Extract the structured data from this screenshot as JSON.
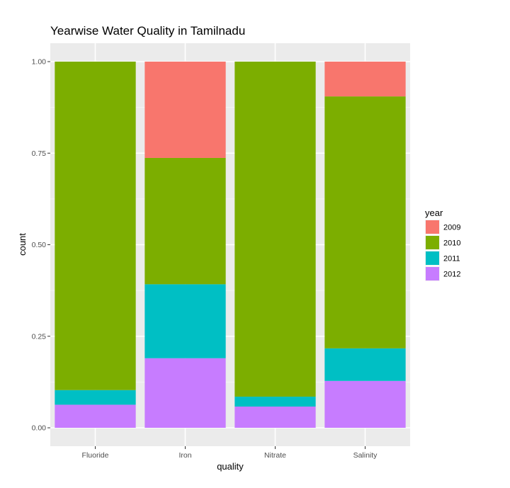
{
  "chart_data": {
    "type": "bar",
    "stacked": true,
    "title": "Yearwise Water Quality in Tamilnadu",
    "xlabel": "quality",
    "ylabel": "count",
    "categories": [
      "Fluoride",
      "Iron",
      "Nitrate",
      "Salinity"
    ],
    "ylim": [
      0,
      1
    ],
    "yticks": [
      "0.00",
      "0.25",
      "0.50",
      "0.75",
      "1.00"
    ],
    "grid": true,
    "legend_title": "year",
    "legend_position": "right",
    "series": [
      {
        "name": "2012",
        "color": "#C77CFF",
        "values": [
          0.063,
          0.19,
          0.058,
          0.128
        ]
      },
      {
        "name": "2011",
        "color": "#00BFC4",
        "values": [
          0.04,
          0.202,
          0.027,
          0.089
        ]
      },
      {
        "name": "2010",
        "color": "#7CAE00",
        "values": [
          0.897,
          0.345,
          0.915,
          0.688
        ]
      },
      {
        "name": "2009",
        "color": "#F8766D",
        "values": [
          0.0,
          0.263,
          0.0,
          0.095
        ]
      }
    ],
    "legend_order": [
      "2009",
      "2010",
      "2011",
      "2012"
    ]
  }
}
